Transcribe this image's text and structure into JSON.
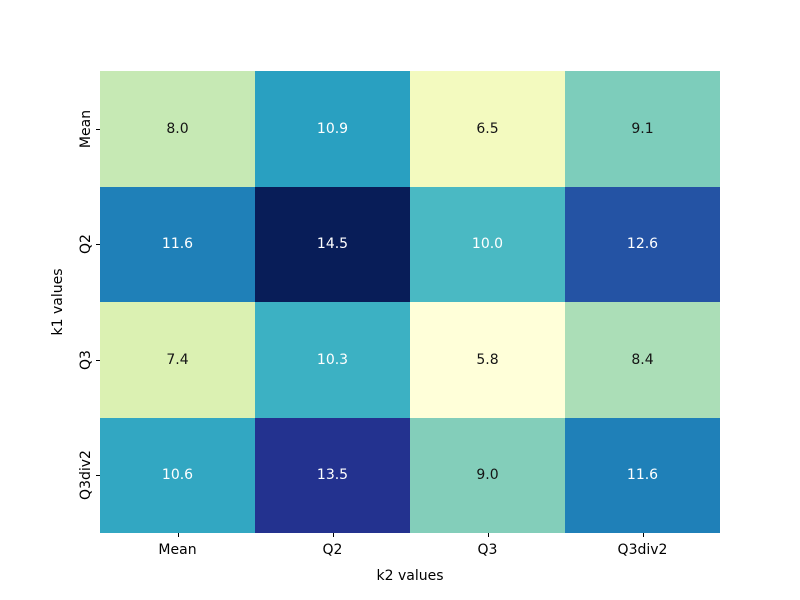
{
  "chart_data": {
    "type": "heatmap",
    "xlabel": "k2 values",
    "ylabel": "k1 values",
    "columns": [
      "Mean",
      "Q2",
      "Q3",
      "Q3div2"
    ],
    "rows": [
      "Mean",
      "Q2",
      "Q3",
      "Q3div2"
    ],
    "values": [
      [
        8.0,
        10.9,
        6.5,
        9.1
      ],
      [
        11.6,
        14.5,
        10.0,
        12.6
      ],
      [
        7.4,
        10.3,
        5.8,
        8.4
      ],
      [
        10.6,
        13.5,
        9.0,
        11.6
      ]
    ],
    "value_labels": [
      [
        "8.0",
        "10.9",
        "6.5",
        "9.1"
      ],
      [
        "11.6",
        "14.5",
        "10.0",
        "12.6"
      ],
      [
        "7.4",
        "10.3",
        "5.8",
        "8.4"
      ],
      [
        "10.6",
        "13.5",
        "9.0",
        "11.6"
      ]
    ],
    "cell_colors": [
      [
        "#c6e9b4",
        "#29a0c1",
        "#f3fabf",
        "#7dcdbb"
      ],
      [
        "#1f80b8",
        "#081d58",
        "#4ab9c3",
        "#2453a4"
      ],
      [
        "#dbf1b2",
        "#3cb1c3",
        "#ffffd9",
        "#abdeb7"
      ],
      [
        "#32a7c2",
        "#23328f",
        "#83ceba",
        "#1f80b8"
      ]
    ],
    "text_colors": [
      [
        "#151515",
        "#ffffff",
        "#151515",
        "#151515"
      ],
      [
        "#ffffff",
        "#ffffff",
        "#ffffff",
        "#ffffff"
      ],
      [
        "#151515",
        "#ffffff",
        "#151515",
        "#151515"
      ],
      [
        "#ffffff",
        "#ffffff",
        "#151515",
        "#ffffff"
      ]
    ],
    "colormap": "YlGnBu",
    "vmin": 5.8,
    "vmax": 14.5,
    "legend": "none",
    "grid": false
  },
  "colors": {
    "background": "#ffffff",
    "axis_text": "#000000",
    "tick": "#000000"
  }
}
